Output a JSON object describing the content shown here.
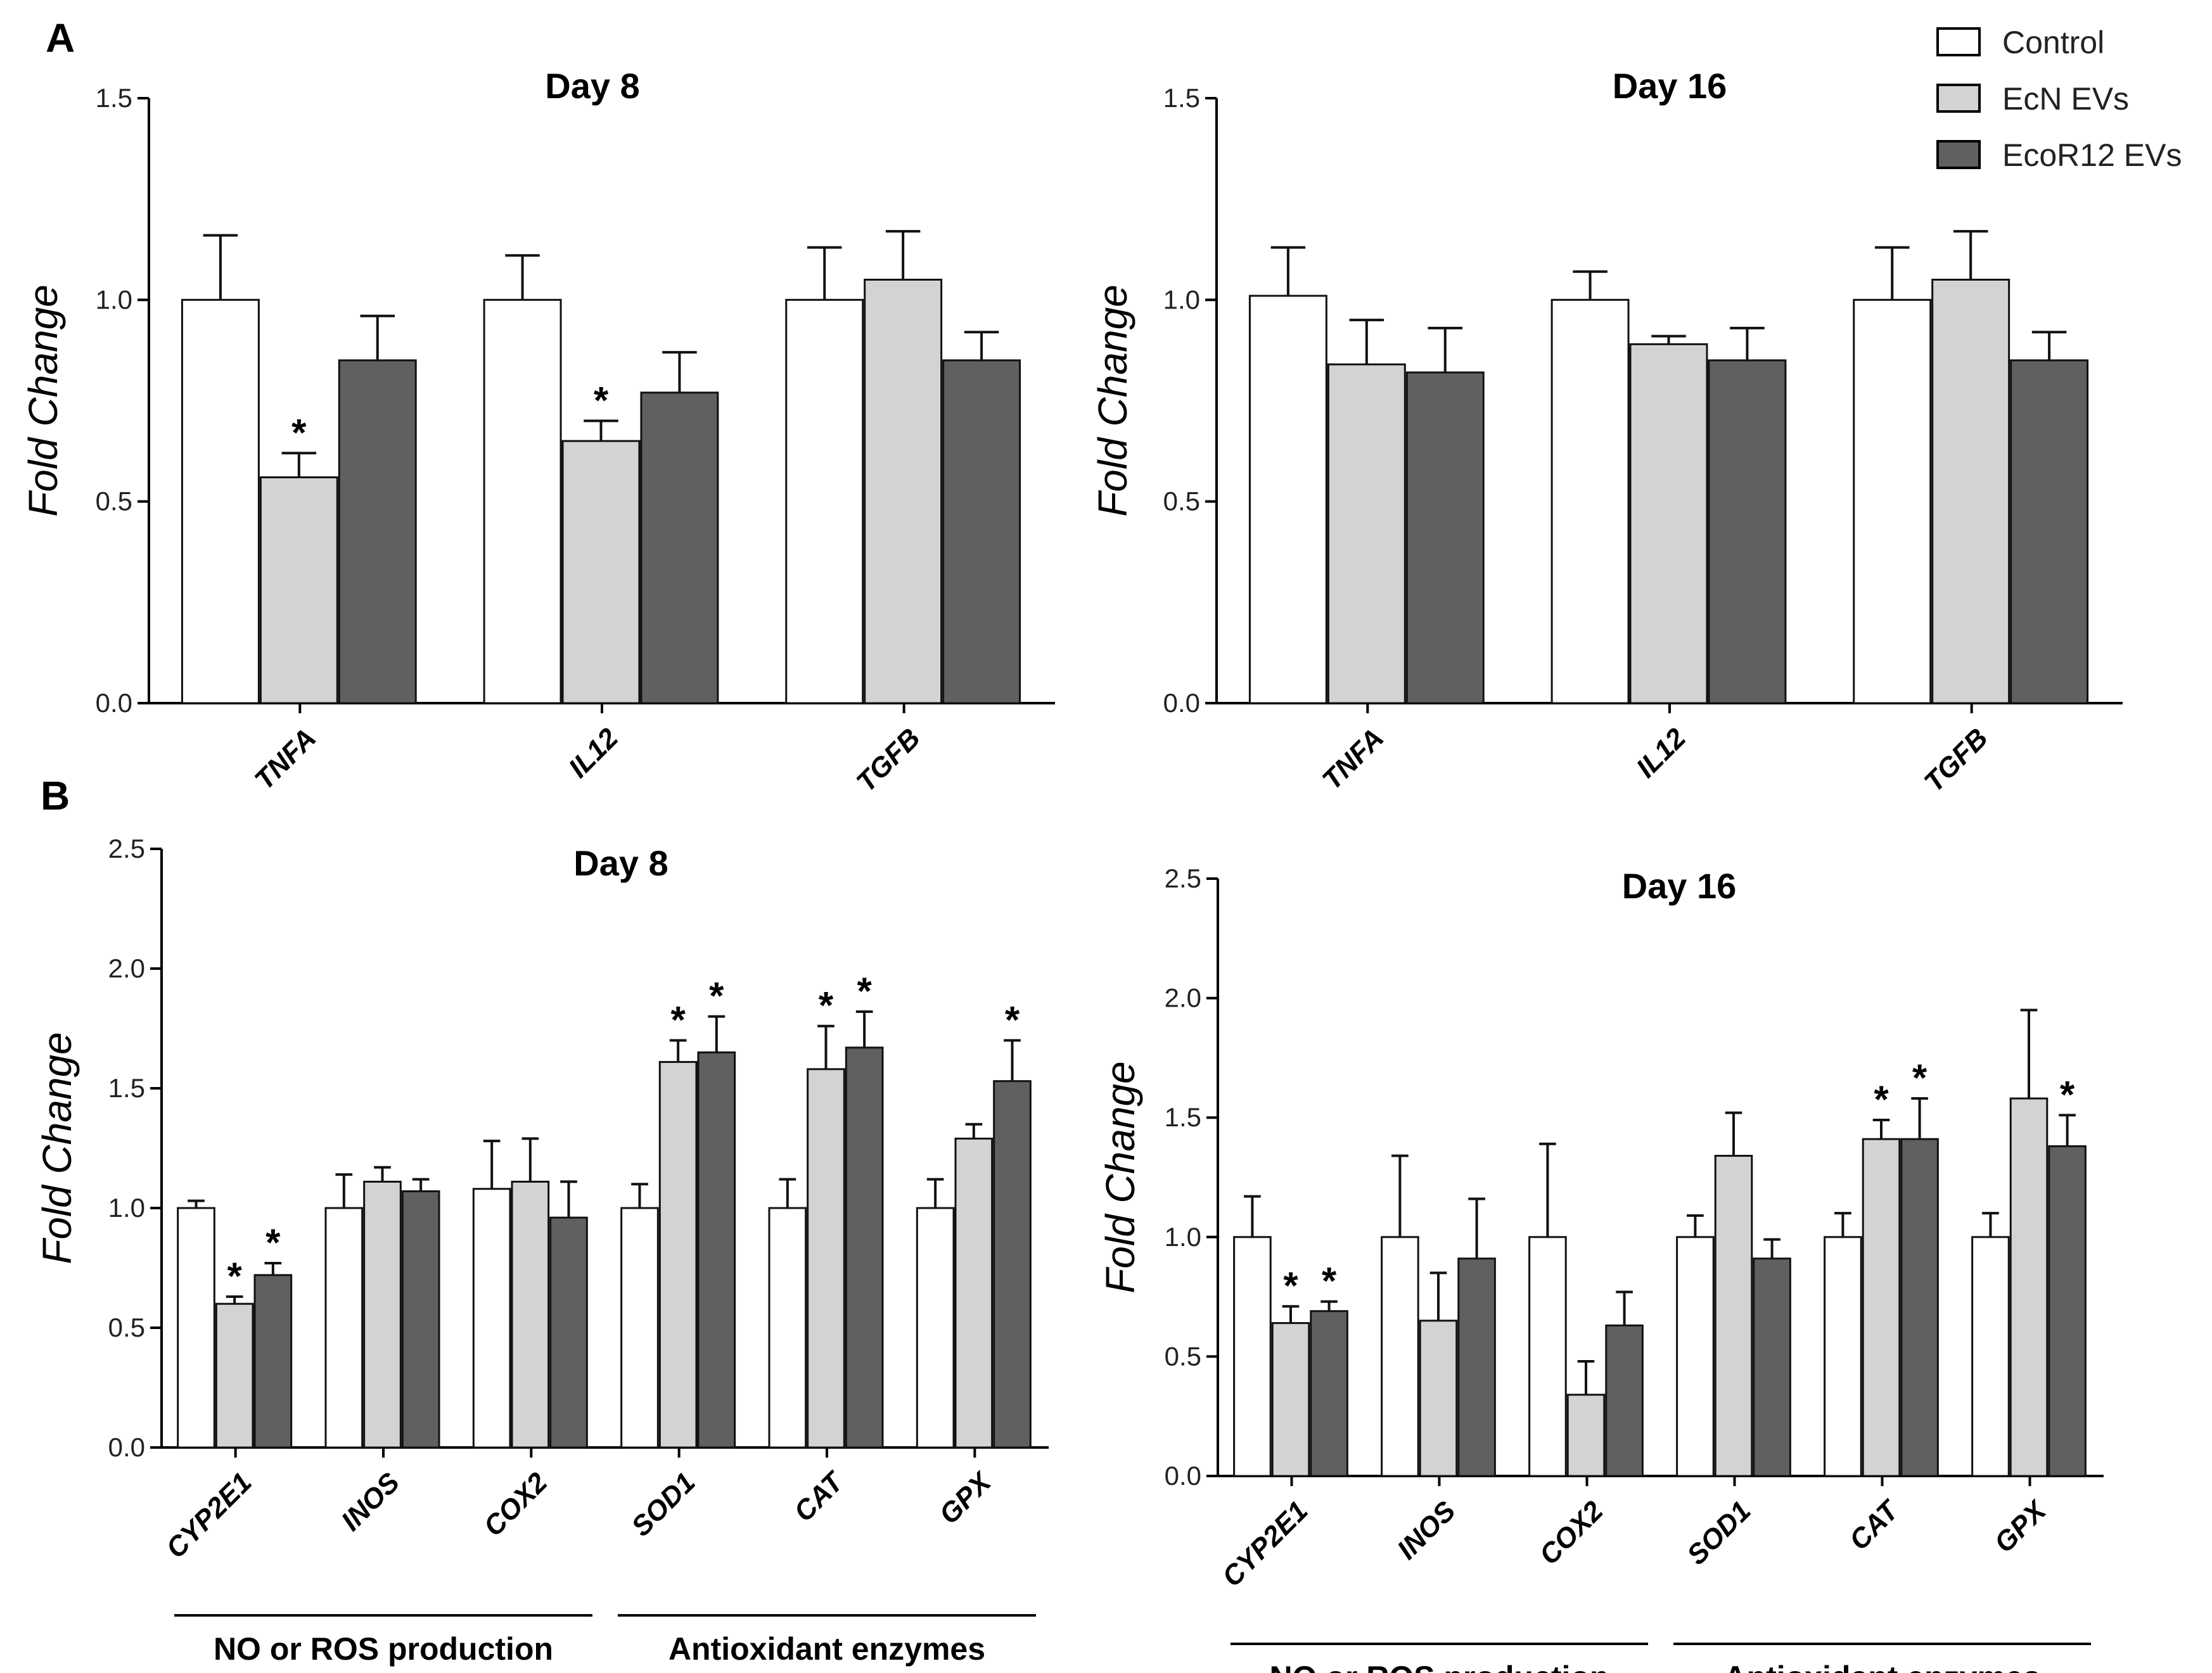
{
  "panel_labels": [
    "A",
    "B"
  ],
  "legend": [
    {
      "name": "Control",
      "color": "#ffffff"
    },
    {
      "name": "EcN EVs",
      "color": "#d3d3d3"
    },
    {
      "name": "EcoR12 EVs",
      "color": "#606060"
    }
  ],
  "chart_data": [
    {
      "type": "bar",
      "panel": "A",
      "title": "Day 8",
      "ylabel": "Fold Change",
      "ylim": [
        0,
        1.5
      ],
      "yticks": [
        "0.0",
        "0.5",
        "1.0",
        "1.5"
      ],
      "categories": [
        "TNFA",
        "IL12",
        "TGFB"
      ],
      "series": [
        {
          "name": "Control",
          "values": [
            1.0,
            1.0,
            1.0
          ],
          "errors": [
            0.16,
            0.11,
            0.13
          ],
          "sig": [
            "",
            "",
            ""
          ]
        },
        {
          "name": "EcN EVs",
          "values": [
            0.56,
            0.65,
            1.05
          ],
          "errors": [
            0.06,
            0.05,
            0.12
          ],
          "sig": [
            "*",
            "*",
            ""
          ]
        },
        {
          "name": "EcoR12 EVs",
          "values": [
            0.85,
            0.77,
            0.85
          ],
          "errors": [
            0.11,
            0.1,
            0.07
          ],
          "sig": [
            "",
            "",
            ""
          ]
        }
      ],
      "groups": []
    },
    {
      "type": "bar",
      "panel": "A",
      "title": "Day 16",
      "ylabel": "Fold Change",
      "ylim": [
        0,
        1.5
      ],
      "yticks": [
        "0.0",
        "0.5",
        "1.0",
        "1.5"
      ],
      "categories": [
        "TNFA",
        "IL12",
        "TGFB"
      ],
      "series": [
        {
          "name": "Control",
          "values": [
            1.01,
            1.0,
            1.0
          ],
          "errors": [
            0.12,
            0.07,
            0.13
          ],
          "sig": [
            "",
            "",
            ""
          ]
        },
        {
          "name": "EcN EVs",
          "values": [
            0.84,
            0.89,
            1.05
          ],
          "errors": [
            0.11,
            0.02,
            0.12
          ],
          "sig": [
            "",
            "",
            ""
          ]
        },
        {
          "name": "EcoR12 EVs",
          "values": [
            0.82,
            0.85,
            0.85
          ],
          "errors": [
            0.11,
            0.08,
            0.07
          ],
          "sig": [
            "",
            "",
            ""
          ]
        }
      ],
      "groups": []
    },
    {
      "type": "bar",
      "panel": "B",
      "title": "Day 8",
      "ylabel": "Fold Change",
      "ylim": [
        0,
        2.5
      ],
      "yticks": [
        "0.0",
        "0.5",
        "1.0",
        "1.5",
        "2.0",
        "2.5"
      ],
      "categories": [
        "CYP2E1",
        "INOS",
        "COX2",
        "SOD1",
        "CAT",
        "GPX"
      ],
      "series": [
        {
          "name": "Control",
          "values": [
            1.0,
            1.0,
            1.08,
            1.0,
            1.0,
            1.0
          ],
          "errors": [
            0.03,
            0.14,
            0.2,
            0.1,
            0.12,
            0.12
          ],
          "sig": [
            "",
            "",
            "",
            "",
            "",
            ""
          ]
        },
        {
          "name": "EcN EVs",
          "values": [
            0.6,
            1.11,
            1.11,
            1.61,
            1.58,
            1.29
          ],
          "errors": [
            0.03,
            0.06,
            0.18,
            0.09,
            0.18,
            0.06
          ],
          "sig": [
            "*",
            "",
            "",
            "*",
            "*",
            ""
          ]
        },
        {
          "name": "EcoR12 EVs",
          "values": [
            0.72,
            1.07,
            0.96,
            1.65,
            1.67,
            1.53
          ],
          "errors": [
            0.05,
            0.05,
            0.15,
            0.15,
            0.15,
            0.17
          ],
          "sig": [
            "*",
            "",
            "",
            "*",
            "*",
            "*"
          ]
        }
      ],
      "groups": [
        {
          "label": "NO or ROS production",
          "from": 0,
          "to": 2
        },
        {
          "label": "Antioxidant enzymes",
          "from": 3,
          "to": 5
        }
      ]
    },
    {
      "type": "bar",
      "panel": "B",
      "title": "Day 16",
      "ylabel": "Fold Change",
      "ylim": [
        0,
        2.5
      ],
      "yticks": [
        "0.0",
        "0.5",
        "1.0",
        "1.5",
        "2.0",
        "2.5"
      ],
      "categories": [
        "CYP2E1",
        "INOS",
        "COX2",
        "SOD1",
        "CAT",
        "GPX"
      ],
      "series": [
        {
          "name": "Control",
          "values": [
            1.0,
            1.0,
            1.0,
            1.0,
            1.0,
            1.0
          ],
          "errors": [
            0.17,
            0.34,
            0.39,
            0.09,
            0.1,
            0.1
          ],
          "sig": [
            "",
            "",
            "",
            "",
            "",
            ""
          ]
        },
        {
          "name": "EcN EVs",
          "values": [
            0.64,
            0.65,
            0.34,
            1.34,
            1.41,
            1.58
          ],
          "errors": [
            0.07,
            0.2,
            0.14,
            0.18,
            0.08,
            0.37
          ],
          "sig": [
            "*",
            "",
            "",
            "",
            "*",
            ""
          ]
        },
        {
          "name": "EcoR12 EVs",
          "values": [
            0.69,
            0.91,
            0.63,
            0.91,
            1.41,
            1.38
          ],
          "errors": [
            0.04,
            0.25,
            0.14,
            0.08,
            0.17,
            0.13
          ],
          "sig": [
            "*",
            "",
            "",
            "",
            "*",
            "*"
          ]
        }
      ],
      "groups": [
        {
          "label": "NO or ROS production",
          "from": 0,
          "to": 2
        },
        {
          "label": "Antioxidant enzymes",
          "from": 3,
          "to": 5
        }
      ]
    }
  ]
}
